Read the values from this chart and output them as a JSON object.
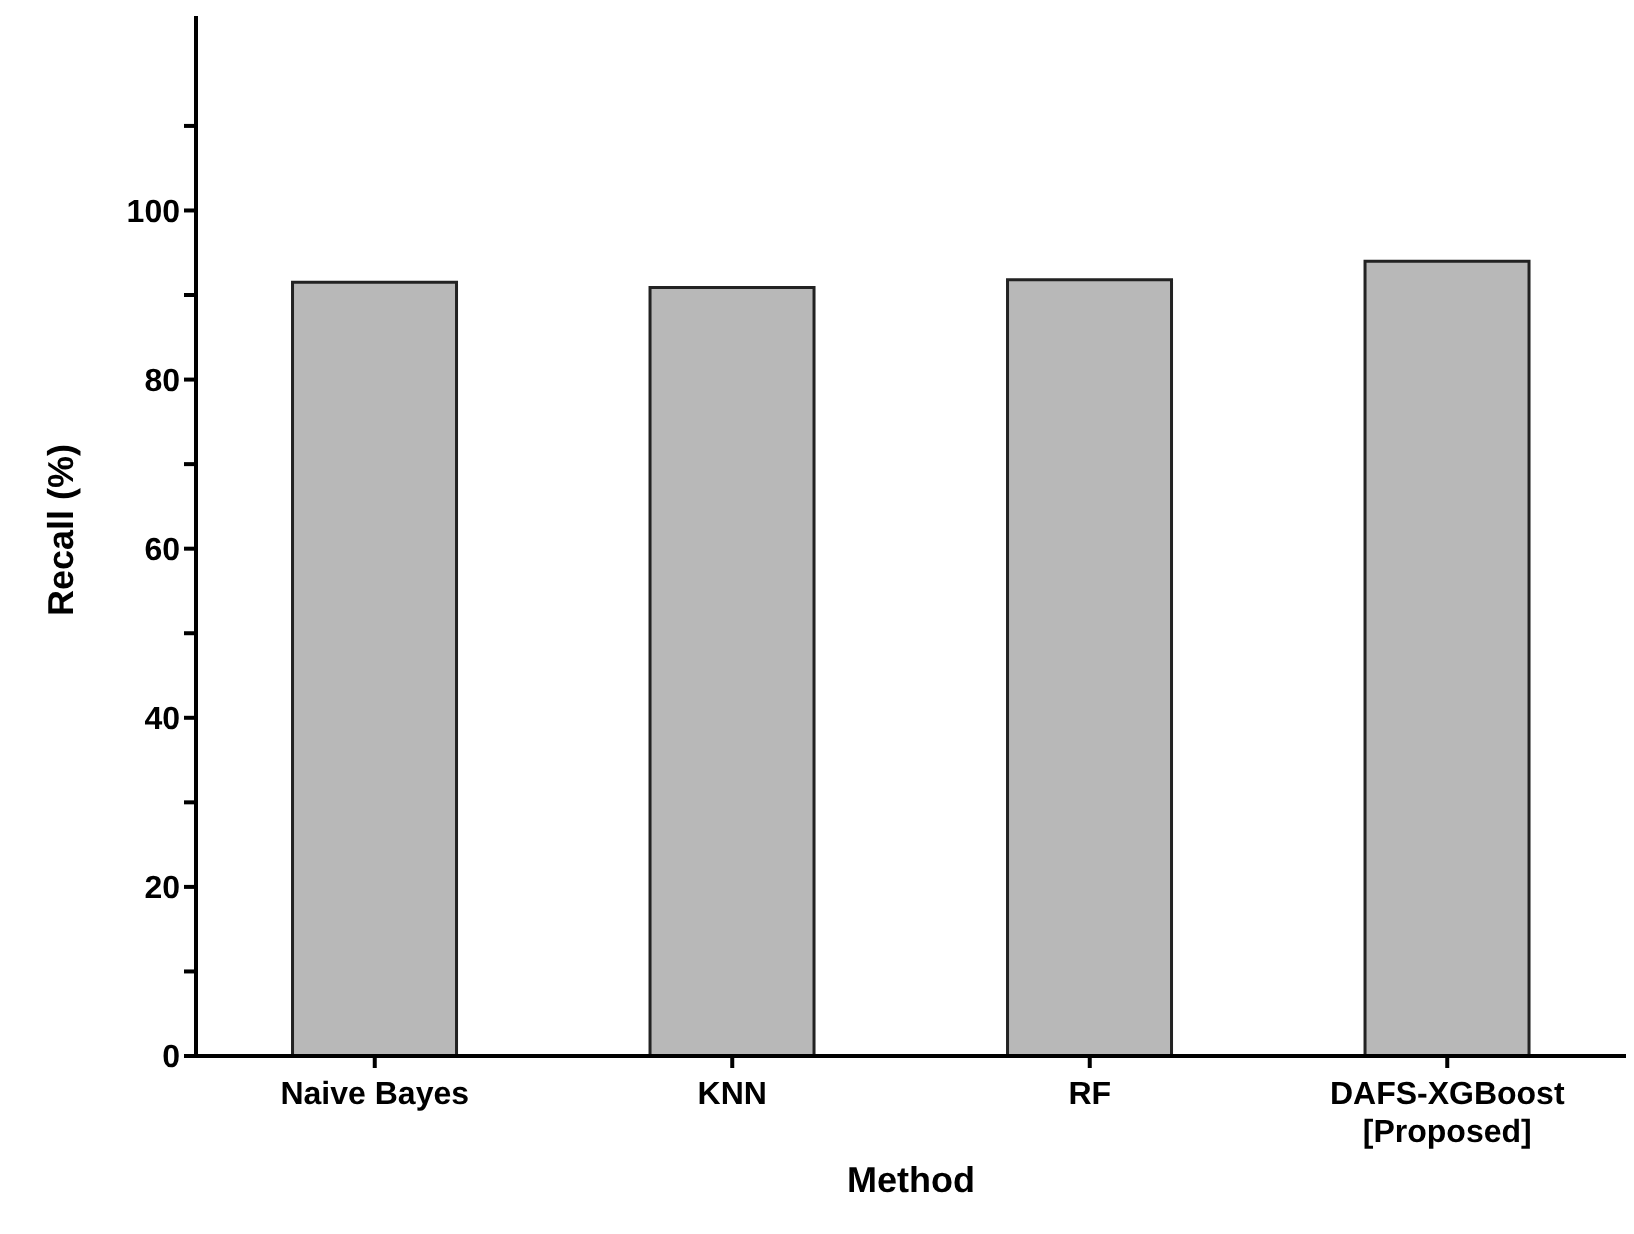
{
  "chart_data": {
    "type": "bar",
    "xlabel": "Method",
    "ylabel": "Recall (%)",
    "categories": [
      "Naive Bayes",
      "KNN",
      "RF",
      "DAFS-XGBoost\n[Proposed]"
    ],
    "values": [
      91.5,
      90.9,
      91.8,
      94.0
    ],
    "color": "#b8b8b8",
    "ylim": [
      0,
      123
    ],
    "yticks": [
      0,
      {
        "value": 10,
        "label": null
      },
      20,
      {
        "value": 30,
        "label": null
      },
      40,
      {
        "value": 50,
        "label": null
      },
      60,
      {
        "value": 70,
        "label": null
      },
      80,
      {
        "value": 90,
        "label": null
      },
      100,
      {
        "value": 110,
        "label": null
      }
    ],
    "grid": false,
    "legend": false
  }
}
